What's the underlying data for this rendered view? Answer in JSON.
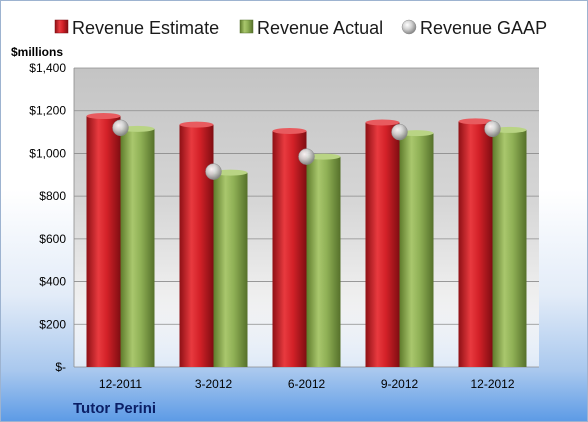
{
  "chart_data": {
    "type": "bar",
    "title": "",
    "unit_label": "$millions",
    "company": "Tutor Perini",
    "categories": [
      "12-2011",
      "3-2012",
      "6-2012",
      "9-2012",
      "12-2012"
    ],
    "series": [
      {
        "name": "Revenue Estimate",
        "kind": "bar",
        "color": "#cc1f26",
        "values": [
          1175,
          1135,
          1105,
          1145,
          1150
        ]
      },
      {
        "name": "Revenue Actual",
        "kind": "bar",
        "color": "#8fb055",
        "values": [
          1115,
          910,
          985,
          1095,
          1110
        ]
      },
      {
        "name": "Revenue GAAP",
        "kind": "marker",
        "color": "#b7b7b7",
        "values": [
          1120,
          915,
          985,
          1100,
          1115
        ]
      }
    ],
    "ylim": [
      0,
      1400
    ],
    "yticks": [
      0,
      200,
      400,
      600,
      800,
      1000,
      1200,
      1400
    ],
    "ytick_labels": [
      "$-",
      "$200",
      "$400",
      "$600",
      "$800",
      "$1,000",
      "$1,200",
      "$1,400"
    ],
    "grid": true,
    "legend_position": "top"
  }
}
